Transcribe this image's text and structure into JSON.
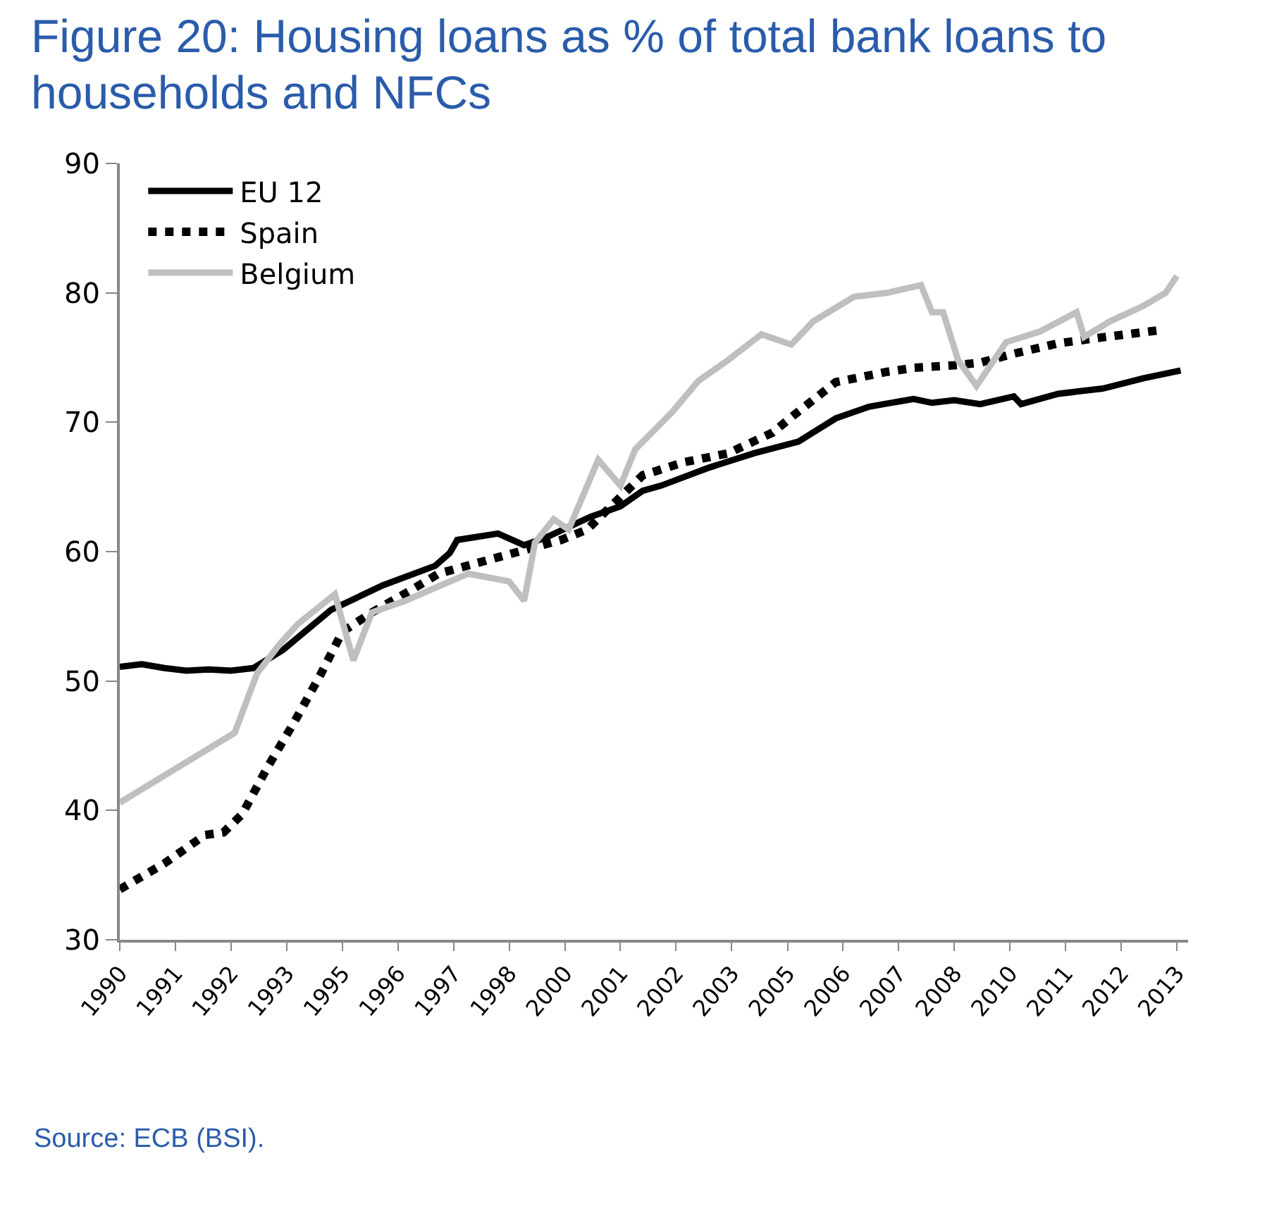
{
  "chart_data": {
    "type": "line",
    "title": "Figure 20: Housing loans as % of total bank loans to households and NFCs",
    "annotations": [
      "Source: ECB (BSI)."
    ],
    "xlim": [
      "1990-01",
      "2014-01"
    ],
    "xticks": [
      {
        "value": "1990-01",
        "label": "1990"
      },
      {
        "value": "1991-04",
        "label": "1991"
      },
      {
        "value": "1992-07",
        "label": "1992"
      },
      {
        "value": "1993-10",
        "label": "1993"
      },
      {
        "value": "1995-01",
        "label": "1995"
      },
      {
        "value": "1996-04",
        "label": "1996"
      },
      {
        "value": "1997-07",
        "label": "1997"
      },
      {
        "value": "1998-10",
        "label": "1998"
      },
      {
        "value": "2000-01",
        "label": "2000"
      },
      {
        "value": "2001-04",
        "label": "2001"
      },
      {
        "value": "2002-07",
        "label": "2002"
      },
      {
        "value": "2003-10",
        "label": "2003"
      },
      {
        "value": "2005-01",
        "label": "2005"
      },
      {
        "value": "2006-04",
        "label": "2006"
      },
      {
        "value": "2007-07",
        "label": "2007"
      },
      {
        "value": "2008-10",
        "label": "2008"
      },
      {
        "value": "2010-01",
        "label": "2010"
      },
      {
        "value": "2011-04",
        "label": "2011"
      },
      {
        "value": "2012-07",
        "label": "2012"
      },
      {
        "value": "2013-10",
        "label": "2013"
      }
    ],
    "ylim": [
      30,
      90
    ],
    "yticks": [
      30,
      40,
      50,
      60,
      70,
      80,
      90
    ],
    "grid": false,
    "legend": "top left",
    "series": [
      {
        "name": "EU 12",
        "color": "#000000",
        "line_style": "solid",
        "x": [
          "1990-01",
          "1990-07",
          "1991-01",
          "1991-07",
          "1992-01",
          "1992-07",
          "1993-01",
          "1993-09",
          "1994-10",
          "1995-12",
          "1997-02",
          "1997-06",
          "1997-08",
          "1998-07",
          "1999-02",
          "1999-08",
          "2000-08",
          "2001-04",
          "2001-10",
          "2002-03",
          "2003-04",
          "2004-04",
          "2005-04",
          "2006-02",
          "2006-11",
          "2007-11",
          "2008-04",
          "2008-10",
          "2009-05",
          "2010-02",
          "2010-04",
          "2011-02",
          "2012-02",
          "2013-01",
          "2013-11"
        ],
        "values": [
          51.1,
          51.3,
          51.0,
          50.8,
          50.9,
          50.8,
          51.0,
          52.4,
          55.5,
          57.4,
          58.9,
          59.9,
          60.9,
          61.4,
          60.5,
          61.1,
          62.7,
          63.5,
          64.7,
          65.1,
          66.5,
          67.6,
          68.5,
          70.3,
          71.2,
          71.8,
          71.5,
          71.7,
          71.4,
          72.0,
          71.4,
          72.2,
          72.6,
          73.4,
          74.0
        ]
      },
      {
        "name": "Spain",
        "color": "#000000",
        "line_style": "dotted",
        "x": [
          "1990-01",
          "1991-01",
          "1991-12",
          "1992-05",
          "1992-10",
          "1993-05",
          "1993-12",
          "1994-07",
          "1995-01",
          "1995-09",
          "1996-08",
          "1997-03",
          "1999-12",
          "2000-07",
          "2001-10",
          "2002-09",
          "2003-09",
          "2004-09",
          "2005-03",
          "2006-02",
          "2007-04",
          "2007-11",
          "2008-10",
          "2009-05",
          "2010-02",
          "2011-02",
          "2012-03",
          "2013-05"
        ],
        "values": [
          33.9,
          35.9,
          38.1,
          38.3,
          39.7,
          43.4,
          46.8,
          50.4,
          53.8,
          55.3,
          57.1,
          58.3,
          60.9,
          61.7,
          65.9,
          66.9,
          67.6,
          69.2,
          70.6,
          73.1,
          73.9,
          74.2,
          74.4,
          74.6,
          75.3,
          76.1,
          76.6,
          77.1
        ]
      },
      {
        "name": "Belgium",
        "color": "#bfbfbf",
        "line_style": "solid",
        "x": [
          "1990-01",
          "1992-08",
          "1993-02",
          "1993-08",
          "1994-01",
          "1994-11",
          "1995-04",
          "1995-09",
          "1996-06",
          "1997-02",
          "1997-11",
          "1998-10",
          "1999-02",
          "1999-05",
          "1999-10",
          "2000-02",
          "2000-10",
          "2001-04",
          "2001-08",
          "2002-06",
          "2003-01",
          "2003-09",
          "2004-06",
          "2005-02",
          "2005-08",
          "2006-07",
          "2007-04",
          "2008-01",
          "2008-04",
          "2008-07",
          "2008-11",
          "2009-04",
          "2009-12",
          "2010-09",
          "2011-07",
          "2011-09",
          "2012-04",
          "2013-01",
          "2013-07",
          "2013-10"
        ],
        "values": [
          40.6,
          46.0,
          50.6,
          52.8,
          54.4,
          56.7,
          51.6,
          55.3,
          56.2,
          57.2,
          58.3,
          57.7,
          56.2,
          60.7,
          62.5,
          61.7,
          67.1,
          65.1,
          67.9,
          70.8,
          73.2,
          74.8,
          76.8,
          76.0,
          77.8,
          79.7,
          80.0,
          80.6,
          78.5,
          78.5,
          74.8,
          72.8,
          76.2,
          77.0,
          78.5,
          76.6,
          77.8,
          79.0,
          80.0,
          81.3
        ]
      }
    ]
  }
}
